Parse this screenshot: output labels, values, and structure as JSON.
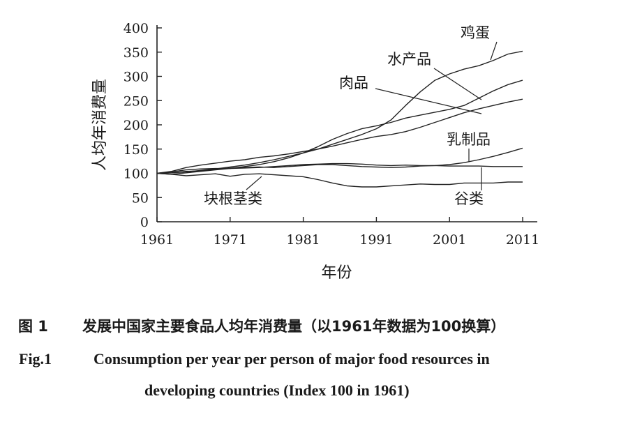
{
  "chart_data": {
    "type": "line",
    "title": "",
    "xlabel": "年份",
    "ylabel": "人均年消费量",
    "xlim": [
      1961,
      2013
    ],
    "ylim": [
      0,
      400
    ],
    "xticks": [
      1961,
      1971,
      1981,
      1991,
      2001,
      2011
    ],
    "yticks": [
      0,
      50,
      100,
      150,
      200,
      250,
      300,
      350,
      400
    ],
    "grid": false,
    "legend": "none",
    "series": [
      {
        "name": "鸡蛋",
        "color": "#222222",
        "x": [
          1961,
          1963,
          1965,
          1967,
          1969,
          1971,
          1973,
          1975,
          1977,
          1979,
          1981,
          1983,
          1985,
          1987,
          1989,
          1991,
          1993,
          1995,
          1997,
          1999,
          2001,
          2003,
          2005,
          2007,
          2009,
          2011
        ],
        "y": [
          100,
          101,
          103,
          106,
          109,
          113,
          117,
          122,
          128,
          135,
          142,
          150,
          160,
          170,
          180,
          192,
          210,
          240,
          268,
          292,
          305,
          315,
          322,
          333,
          346,
          352
        ]
      },
      {
        "name": "水产品",
        "color": "#222222",
        "x": [
          1961,
          1963,
          1965,
          1967,
          1969,
          1971,
          1973,
          1975,
          1977,
          1979,
          1981,
          1983,
          1985,
          1987,
          1989,
          1991,
          1993,
          1995,
          1997,
          1999,
          2001,
          2003,
          2005,
          2007,
          2009,
          2011
        ],
        "y": [
          100,
          98,
          101,
          104,
          107,
          110,
          114,
          118,
          124,
          132,
          142,
          155,
          170,
          182,
          192,
          198,
          205,
          214,
          220,
          226,
          232,
          240,
          255,
          270,
          283,
          292
        ]
      },
      {
        "name": "肉品",
        "color": "#222222",
        "x": [
          1961,
          1963,
          1965,
          1967,
          1969,
          1971,
          1973,
          1975,
          1977,
          1979,
          1981,
          1983,
          1985,
          1987,
          1989,
          1991,
          1993,
          1995,
          1997,
          1999,
          2001,
          2003,
          2005,
          2007,
          2009,
          2011
        ],
        "y": [
          100,
          104,
          112,
          117,
          121,
          125,
          128,
          133,
          136,
          140,
          145,
          150,
          156,
          163,
          170,
          176,
          180,
          186,
          195,
          205,
          215,
          225,
          233,
          240,
          247,
          253
        ]
      },
      {
        "name": "乳制品",
        "color": "#222222",
        "x": [
          1961,
          1963,
          1965,
          1967,
          1969,
          1971,
          1973,
          1975,
          1977,
          1979,
          1981,
          1983,
          1985,
          1987,
          1989,
          1991,
          1993,
          1995,
          1997,
          1999,
          2001,
          2003,
          2005,
          2007,
          2009,
          2011
        ],
        "y": [
          100,
          101,
          104,
          105,
          108,
          111,
          112,
          113,
          112,
          114,
          116,
          118,
          118,
          116,
          114,
          113,
          112,
          113,
          115,
          116,
          118,
          122,
          128,
          135,
          143,
          152
        ]
      },
      {
        "name": "谷类",
        "color": "#222222",
        "x": [
          1961,
          1963,
          1965,
          1967,
          1969,
          1971,
          1973,
          1975,
          1977,
          1979,
          1981,
          1983,
          1985,
          1987,
          1989,
          1991,
          1993,
          1995,
          1997,
          1999,
          2001,
          2003,
          2005,
          2007,
          2009,
          2011
        ],
        "y": [
          100,
          103,
          107,
          109,
          110,
          110,
          111,
          112,
          114,
          116,
          118,
          119,
          120,
          120,
          119,
          117,
          116,
          117,
          116,
          116,
          115,
          115,
          115,
          114,
          114,
          114
        ]
      },
      {
        "name": "块根茎类",
        "color": "#222222",
        "x": [
          1961,
          1963,
          1965,
          1967,
          1969,
          1971,
          1973,
          1975,
          1977,
          1979,
          1981,
          1983,
          1985,
          1987,
          1989,
          1991,
          1993,
          1995,
          1997,
          1999,
          2001,
          2003,
          2005,
          2007,
          2009,
          2011
        ],
        "y": [
          100,
          98,
          95,
          97,
          99,
          94,
          98,
          99,
          97,
          95,
          93,
          87,
          80,
          74,
          72,
          72,
          74,
          76,
          78,
          77,
          77,
          80,
          80,
          80,
          82,
          82
        ]
      }
    ]
  },
  "caption": {
    "zh_num": "图 1",
    "zh_text": "发展中国家主要食品人均年消费量（以1961年数据为100换算）",
    "en_num": "Fig.1",
    "en_line1": "Consumption per year per person of major food resources in",
    "en_line2": "developing countries (Index 100 in 1961)"
  }
}
